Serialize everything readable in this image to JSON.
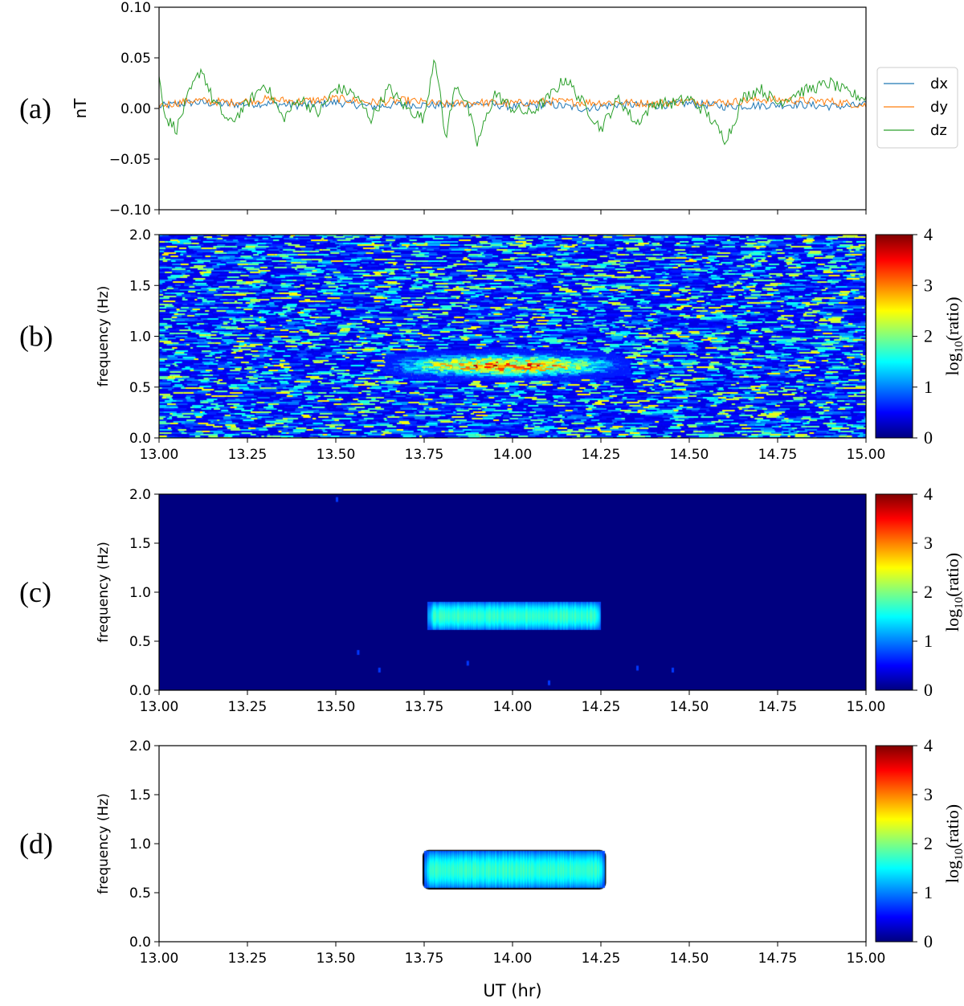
{
  "figure": {
    "xlabel": "UT (hr)"
  },
  "chart_data": [
    {
      "panel": "(a)",
      "type": "line",
      "ylabel": "nT",
      "xlim": [
        13.0,
        15.0
      ],
      "ylim": [
        -0.1,
        0.1
      ],
      "yticks": [
        "0.10",
        "0.05",
        "0.00",
        "−0.05",
        "−0.10"
      ],
      "legend_position": "outside-right",
      "series": [
        {
          "name": "dx",
          "color": "#1f77b4",
          "x": [
            13.0,
            13.1,
            13.2,
            13.3,
            13.4,
            13.5,
            13.6,
            13.7,
            13.8,
            13.9,
            14.0,
            14.1,
            14.2,
            14.3,
            14.4,
            14.5,
            14.6,
            14.7,
            14.8,
            14.9,
            15.0
          ],
          "y": [
            0.002,
            0.006,
            0.004,
            0.005,
            0.003,
            0.006,
            0.002,
            0.004,
            0.003,
            0.005,
            0.002,
            0.004,
            0.0,
            0.004,
            0.003,
            0.005,
            0.002,
            0.003,
            0.004,
            0.002,
            0.003
          ]
        },
        {
          "name": "dy",
          "color": "#ff7f0e",
          "x": [
            13.0,
            13.1,
            13.2,
            13.3,
            13.4,
            13.5,
            13.6,
            13.7,
            13.8,
            13.9,
            14.0,
            14.1,
            14.2,
            14.3,
            14.4,
            14.5,
            14.6,
            14.7,
            14.8,
            14.9,
            15.0
          ],
          "y": [
            0.003,
            0.008,
            0.006,
            0.009,
            0.007,
            0.01,
            0.006,
            0.008,
            0.004,
            0.006,
            0.005,
            0.007,
            0.006,
            0.006,
            0.005,
            0.007,
            0.006,
            0.009,
            0.008,
            0.007,
            0.003
          ]
        },
        {
          "name": "dz",
          "color": "#2ca02c",
          "x": [
            13.0,
            13.02,
            13.05,
            13.08,
            13.12,
            13.15,
            13.2,
            13.25,
            13.3,
            13.35,
            13.4,
            13.45,
            13.5,
            13.55,
            13.6,
            13.65,
            13.7,
            13.75,
            13.78,
            13.81,
            13.84,
            13.87,
            13.9,
            13.95,
            14.0,
            14.05,
            14.1,
            14.15,
            14.2,
            14.25,
            14.3,
            14.35,
            14.4,
            14.45,
            14.5,
            14.55,
            14.6,
            14.62,
            14.65,
            14.7,
            14.75,
            14.8,
            14.85,
            14.9,
            14.95,
            15.0
          ],
          "y": [
            0.03,
            -0.01,
            -0.02,
            0.01,
            0.04,
            0.01,
            -0.015,
            0.005,
            0.025,
            -0.01,
            0.01,
            -0.005,
            0.02,
            0.015,
            -0.01,
            0.02,
            0.0,
            -0.01,
            0.055,
            -0.03,
            0.025,
            0.005,
            -0.035,
            0.015,
            0.0,
            -0.005,
            0.01,
            0.03,
            0.005,
            -0.02,
            0.01,
            -0.015,
            0.005,
            0.005,
            0.01,
            -0.005,
            -0.03,
            -0.02,
            0.01,
            0.02,
            0.005,
            0.015,
            0.02,
            0.025,
            0.015,
            0.01
          ]
        }
      ]
    },
    {
      "panel": "(b)",
      "type": "heatmap",
      "ylabel": "frequency (Hz)",
      "xlim": [
        13.0,
        15.0
      ],
      "ylim": [
        0.0,
        2.0
      ],
      "xticks": [
        "13.00",
        "13.25",
        "13.50",
        "13.75",
        "14.00",
        "14.25",
        "14.50",
        "14.75",
        "15.00"
      ],
      "yticks": [
        "2.0",
        "1.5",
        "1.0",
        "0.5",
        "0.0"
      ],
      "colorbar": {
        "label": "log10(ratio)",
        "range": [
          0,
          4
        ],
        "ticks": [
          "4",
          "3",
          "2",
          "1",
          "0"
        ],
        "colormap": "jet"
      },
      "feature": {
        "t_range": [
          13.6,
          14.35
        ],
        "f_center": 0.72,
        "f_halfwidth": 0.1,
        "peak": 3.5
      },
      "background": "noisy"
    },
    {
      "panel": "(c)",
      "type": "heatmap",
      "ylabel": "frequency (Hz)",
      "xlim": [
        13.0,
        15.0
      ],
      "ylim": [
        0.0,
        2.0
      ],
      "xticks": [
        "13.00",
        "13.25",
        "13.50",
        "13.75",
        "14.00",
        "14.25",
        "14.50",
        "14.75",
        "15.00"
      ],
      "yticks": [
        "2.0",
        "1.5",
        "1.0",
        "0.5",
        "0.0"
      ],
      "colorbar": {
        "label": "log10(ratio)",
        "range": [
          0,
          4
        ],
        "ticks": [
          "4",
          "3",
          "2",
          "1",
          "0"
        ],
        "colormap": "jet"
      },
      "feature": {
        "t_range": [
          13.76,
          14.25
        ],
        "f_range": [
          0.62,
          0.9
        ],
        "peak": 1.7
      },
      "background": "zero"
    },
    {
      "panel": "(d)",
      "type": "heatmap",
      "ylabel": "frequency (Hz)",
      "xlim": [
        13.0,
        15.0
      ],
      "ylim": [
        0.0,
        2.0
      ],
      "xticks": [
        "13.00",
        "13.25",
        "13.50",
        "13.75",
        "14.00",
        "14.25",
        "14.50",
        "14.75",
        "15.00"
      ],
      "yticks": [
        "2.0",
        "1.5",
        "1.0",
        "0.5",
        "0.0"
      ],
      "colorbar": {
        "label": "log10(ratio)",
        "range": [
          0,
          4
        ],
        "ticks": [
          "4",
          "3",
          "2",
          "1",
          "0"
        ],
        "colormap": "jet"
      },
      "feature": {
        "t_range": [
          13.75,
          14.26
        ],
        "f_range": [
          0.55,
          0.92
        ],
        "peak": 1.7
      },
      "background": "masked-white"
    }
  ]
}
